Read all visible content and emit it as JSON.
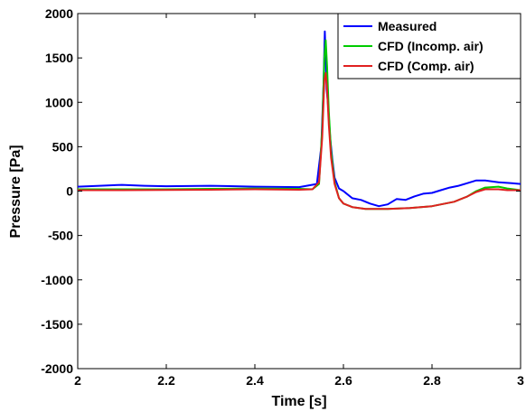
{
  "chart_data": {
    "type": "line",
    "xlabel": "Time [s]",
    "ylabel": "Pressure [Pa]",
    "xlim": [
      2,
      3
    ],
    "ylim": [
      -2000,
      2000
    ],
    "x_ticks": [
      "2",
      "2.2",
      "2.4",
      "2.6",
      "2.8",
      "3"
    ],
    "y_ticks": [
      "2000",
      "1500",
      "1000",
      "500",
      "0",
      "-500",
      "-1000",
      "-1500",
      "-2000"
    ],
    "grid": false,
    "legend_position": "top-right",
    "series": [
      {
        "name": "Measured",
        "color": "#0000ff",
        "x": [
          2.0,
          2.05,
          2.1,
          2.15,
          2.2,
          2.3,
          2.4,
          2.5,
          2.54,
          2.55,
          2.555,
          2.558,
          2.56,
          2.562,
          2.565,
          2.57,
          2.575,
          2.58,
          2.59,
          2.6,
          2.62,
          2.64,
          2.66,
          2.68,
          2.7,
          2.72,
          2.74,
          2.76,
          2.78,
          2.8,
          2.82,
          2.84,
          2.86,
          2.88,
          2.9,
          2.92,
          2.95,
          2.98,
          3.0
        ],
        "y": [
          50,
          60,
          70,
          60,
          55,
          60,
          50,
          45,
          80,
          500,
          1200,
          1800,
          1500,
          1150,
          1000,
          600,
          350,
          150,
          30,
          0,
          -80,
          -100,
          -140,
          -170,
          -150,
          -90,
          -100,
          -60,
          -30,
          -20,
          10,
          40,
          60,
          90,
          120,
          120,
          100,
          90,
          80
        ]
      },
      {
        "name": "CFD (Incomp. air)",
        "color": "#00cc00",
        "x": [
          2.0,
          2.1,
          2.2,
          2.3,
          2.4,
          2.5,
          2.53,
          2.545,
          2.552,
          2.557,
          2.56,
          2.563,
          2.567,
          2.572,
          2.58,
          2.59,
          2.6,
          2.62,
          2.65,
          2.7,
          2.75,
          2.8,
          2.85,
          2.88,
          2.9,
          2.92,
          2.95,
          2.97,
          3.0
        ],
        "y": [
          20,
          20,
          20,
          25,
          30,
          25,
          20,
          80,
          700,
          1500,
          1700,
          1400,
          900,
          450,
          100,
          -80,
          -140,
          -180,
          -200,
          -200,
          -190,
          -170,
          -120,
          -60,
          0,
          40,
          50,
          30,
          10
        ]
      },
      {
        "name": "CFD (Comp. air)",
        "color": "#e02020",
        "x": [
          2.0,
          2.1,
          2.2,
          2.3,
          2.4,
          2.5,
          2.53,
          2.545,
          2.552,
          2.557,
          2.56,
          2.563,
          2.567,
          2.572,
          2.58,
          2.59,
          2.6,
          2.62,
          2.65,
          2.7,
          2.75,
          2.8,
          2.85,
          2.88,
          2.9,
          2.92,
          2.95,
          2.97,
          3.0
        ],
        "y": [
          10,
          10,
          12,
          15,
          20,
          15,
          20,
          100,
          600,
          1250,
          1330,
          1150,
          750,
          380,
          80,
          -80,
          -140,
          -180,
          -200,
          -200,
          -190,
          -170,
          -120,
          -60,
          -10,
          20,
          20,
          10,
          10
        ]
      }
    ]
  }
}
